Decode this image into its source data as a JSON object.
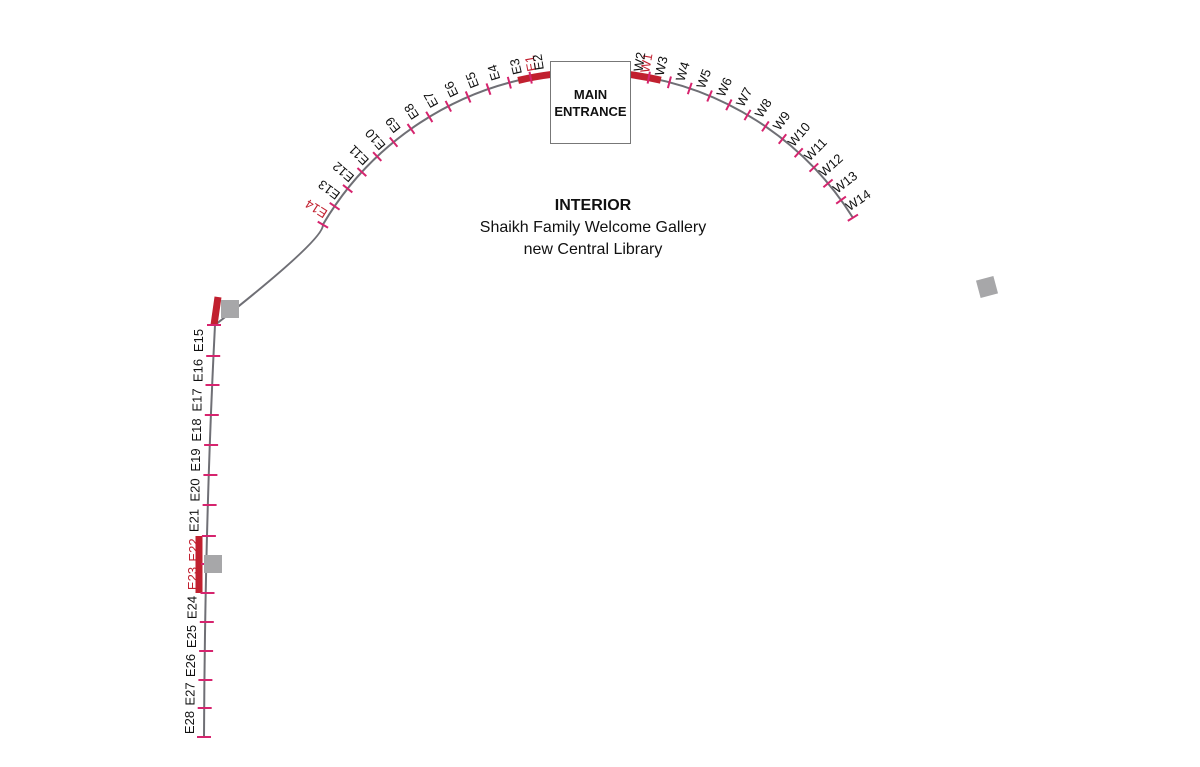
{
  "title": "INTERIOR",
  "subtitle_lines": [
    "Shaikh Family Welcome Gallery",
    "new Central Library"
  ],
  "entrance_lines": [
    "MAIN",
    "ENTRANCE"
  ],
  "east_labels": [
    "E1",
    "E2",
    "E3",
    "E4",
    "E5",
    "E6",
    "E7",
    "E8",
    "E9",
    "E10",
    "E11",
    "E12",
    "E13",
    "E14",
    "E15",
    "E16",
    "E17",
    "E18",
    "E19",
    "E20",
    "E21",
    "E22",
    "E23",
    "E24",
    "E25",
    "E26",
    "E27",
    "E28"
  ],
  "west_labels": [
    "W1",
    "W2",
    "W3",
    "W4",
    "W5",
    "W6",
    "W7",
    "W8",
    "W9",
    "W10",
    "W11",
    "W12",
    "W13",
    "W14"
  ],
  "highlighted": [
    "E1",
    "W1",
    "E14",
    "E22",
    "E23"
  ],
  "colors": {
    "path": "#6f6f75",
    "tick": "#d6246e",
    "highlight": "#c1202f",
    "highlight_label": "#c1202f",
    "label": "#111111",
    "marker": "#a7a7a9"
  }
}
